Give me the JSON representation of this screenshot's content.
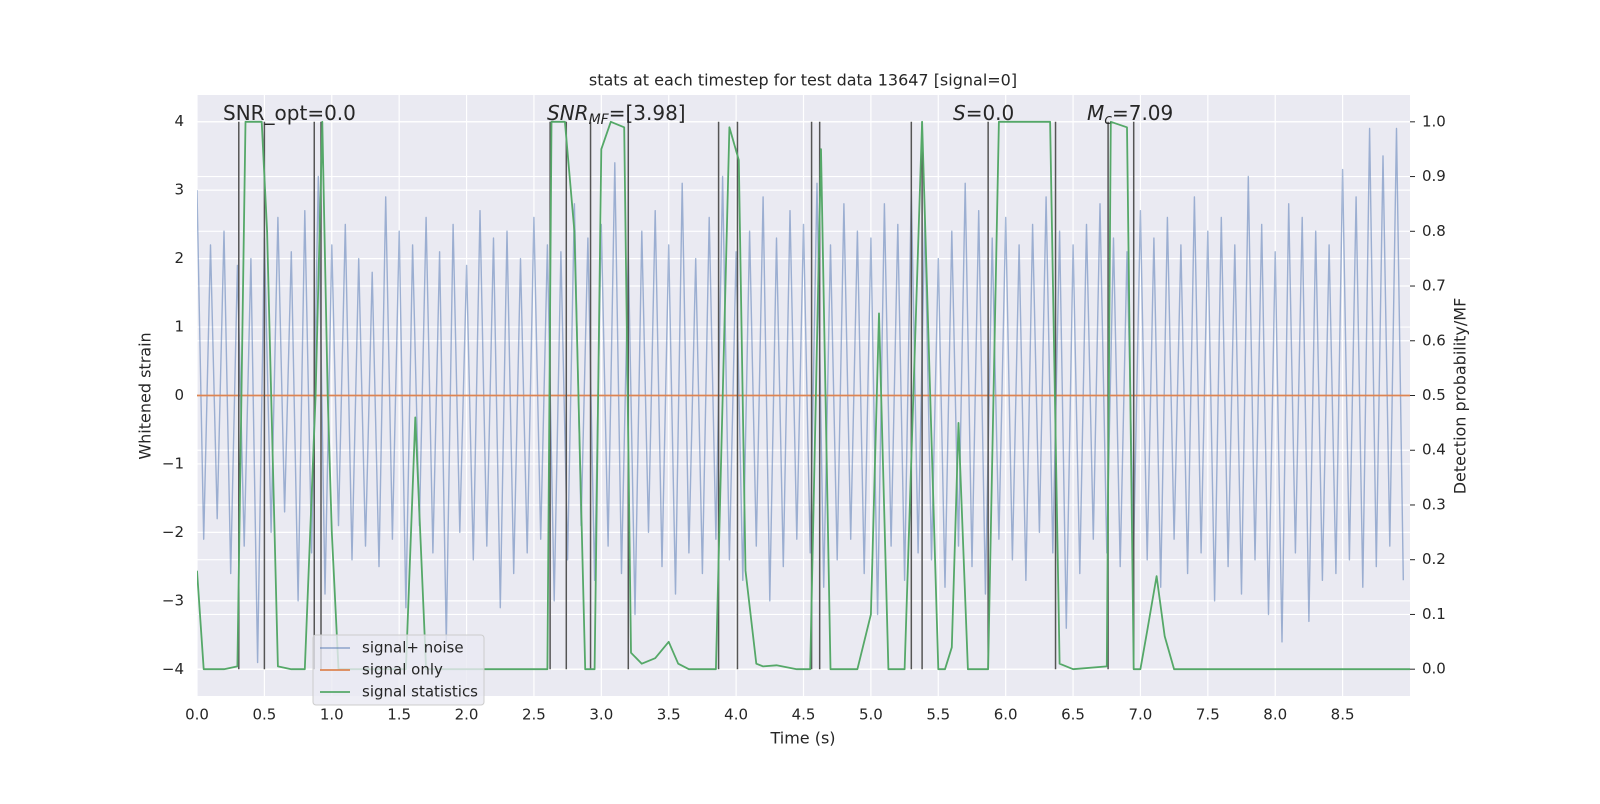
{
  "chart_data": {
    "type": "line",
    "title": "stats at each timestep for test data 13647 [signal=0]",
    "xlabel": "Time (s)",
    "ylabel": "Whitened strain",
    "y2label": "Detection probability/MF",
    "xlim": [
      0,
      9.0
    ],
    "ylim": [
      -4.39,
      4.39
    ],
    "y2lim": [
      -0.049,
      1.049
    ],
    "grid": true,
    "legend": "lower left",
    "xticks": [
      {
        "value": 0,
        "label": "0.0"
      },
      {
        "value": 0.5,
        "label": "0.5"
      },
      {
        "value": 1,
        "label": "1.0"
      },
      {
        "value": 1.5,
        "label": "1.5"
      },
      {
        "value": 2,
        "label": "2.0"
      },
      {
        "value": 2.5,
        "label": "2.5"
      },
      {
        "value": 3,
        "label": "3.0"
      },
      {
        "value": 3.5,
        "label": "3.5"
      },
      {
        "value": 4,
        "label": "4.0"
      },
      {
        "value": 4.5,
        "label": "4.5"
      },
      {
        "value": 5,
        "label": "5.0"
      },
      {
        "value": 5.5,
        "label": "5.5"
      },
      {
        "value": 6,
        "label": "6.0"
      },
      {
        "value": 6.5,
        "label": "6.5"
      },
      {
        "value": 7,
        "label": "7.0"
      },
      {
        "value": 7.5,
        "label": "7.5"
      },
      {
        "value": 8,
        "label": "8.0"
      },
      {
        "value": 8.5,
        "label": "8.5"
      }
    ],
    "yticks": [
      {
        "value": -4,
        "label": "−4"
      },
      {
        "value": -3,
        "label": "−3"
      },
      {
        "value": -2,
        "label": "−2"
      },
      {
        "value": -1,
        "label": "−1"
      },
      0,
      1,
      2,
      3,
      4
    ],
    "y2ticks": [
      {
        "value": 0,
        "label": "0.0"
      },
      {
        "value": 0.1,
        "label": "0.1"
      },
      {
        "value": 0.2,
        "label": "0.2"
      },
      {
        "value": 0.3,
        "label": "0.3"
      },
      {
        "value": 0.4,
        "label": "0.4"
      },
      {
        "value": 0.5,
        "label": "0.5"
      },
      {
        "value": 0.6,
        "label": "0.6"
      },
      {
        "value": 0.7,
        "label": "0.7"
      },
      {
        "value": 0.8,
        "label": "0.8"
      },
      {
        "value": 0.9,
        "label": "0.9"
      },
      {
        "value": 1,
        "label": "1.0"
      }
    ],
    "annotations": [
      {
        "text": "SNR_opt=0.0"
      },
      {
        "text": "SNR",
        "sub": "MF",
        "rest": "=[3.98]"
      },
      {
        "text": "S",
        "rest": "=0.0"
      },
      {
        "text": "M",
        "sub": "c",
        "rest": "=7.09"
      }
    ],
    "vlines": {
      "color": "#555555",
      "ymin": -4,
      "ymax": 4,
      "x": [
        0.31,
        0.5,
        0.87,
        0.92,
        2.62,
        2.74,
        2.92,
        3.2,
        3.87,
        4.01,
        4.56,
        4.62,
        5.3,
        5.38,
        5.87,
        6.37,
        6.76,
        6.95
      ]
    },
    "series": [
      {
        "name": "signal+ noise",
        "color": "#4c72b0",
        "alpha": 0.5,
        "x": [
          0,
          0.05,
          0.1,
          0.15,
          0.2,
          0.25,
          0.3,
          0.35,
          0.4,
          0.45,
          0.5,
          0.55,
          0.6,
          0.65,
          0.7,
          0.75,
          0.8,
          0.85,
          0.9,
          0.95,
          1,
          1.05,
          1.1,
          1.15,
          1.2,
          1.25,
          1.3,
          1.35,
          1.4,
          1.45,
          1.5,
          1.55,
          1.6,
          1.65,
          1.7,
          1.75,
          1.8,
          1.85,
          1.9,
          1.95,
          2,
          2.05,
          2.1,
          2.15,
          2.2,
          2.25,
          2.3,
          2.35,
          2.4,
          2.45,
          2.5,
          2.55,
          2.6,
          2.65,
          2.7,
          2.75,
          2.8,
          2.85,
          2.9,
          2.95,
          3,
          3.05,
          3.1,
          3.15,
          3.2,
          3.25,
          3.3,
          3.35,
          3.4,
          3.45,
          3.5,
          3.55,
          3.6,
          3.65,
          3.7,
          3.75,
          3.8,
          3.85,
          3.9,
          3.95,
          4,
          4.05,
          4.1,
          4.15,
          4.2,
          4.25,
          4.3,
          4.35,
          4.4,
          4.45,
          4.5,
          4.55,
          4.6,
          4.65,
          4.7,
          4.75,
          4.8,
          4.85,
          4.9,
          4.95,
          5,
          5.05,
          5.1,
          5.15,
          5.2,
          5.25,
          5.3,
          5.35,
          5.4,
          5.45,
          5.5,
          5.55,
          5.6,
          5.65,
          5.7,
          5.75,
          5.8,
          5.85,
          5.9,
          5.95,
          6,
          6.05,
          6.1,
          6.15,
          6.2,
          6.25,
          6.3,
          6.35,
          6.4,
          6.45,
          6.5,
          6.55,
          6.6,
          6.65,
          6.7,
          6.75,
          6.8,
          6.85,
          6.9,
          6.95,
          7,
          7.05,
          7.1,
          7.15,
          7.2,
          7.25,
          7.3,
          7.35,
          7.4,
          7.45,
          7.5,
          7.55,
          7.6,
          7.65,
          7.7,
          7.75,
          7.8,
          7.85,
          7.9,
          7.95,
          8,
          8.05,
          8.1,
          8.15,
          8.2,
          8.25,
          8.3,
          8.35,
          8.4,
          8.45,
          8.5,
          8.55,
          8.6,
          8.65,
          8.7,
          8.75,
          8.8,
          8.85,
          8.9,
          8.95
        ],
        "values": [
          3.0,
          -2.1,
          2.2,
          -1.8,
          2.4,
          -2.6,
          1.9,
          -2.2,
          2.0,
          -3.9,
          2.3,
          -2.0,
          2.6,
          -1.7,
          2.1,
          -3.0,
          2.7,
          -2.3,
          3.2,
          -2.9,
          2.2,
          -1.9,
          2.5,
          -2.4,
          2.0,
          -2.2,
          1.8,
          -2.5,
          2.9,
          -2.1,
          2.4,
          -3.1,
          2.2,
          -1.9,
          2.6,
          -2.3,
          2.1,
          -3.6,
          2.5,
          -2.0,
          1.9,
          -2.4,
          2.7,
          -2.2,
          2.3,
          -3.1,
          2.4,
          -2.6,
          2.0,
          -2.3,
          2.6,
          -2.1,
          2.2,
          -3.0,
          2.1,
          -2.4,
          2.8,
          -1.9,
          2.3,
          -2.7,
          2.5,
          -2.2,
          3.4,
          -2.6,
          2.1,
          -3.2,
          2.4,
          -2.0,
          2.7,
          -2.5,
          2.2,
          -2.9,
          3.1,
          -2.3,
          2.0,
          -2.6,
          2.6,
          -2.1,
          3.2,
          -2.4,
          2.1,
          -2.7,
          2.4,
          -2.2,
          2.9,
          -3.0,
          2.3,
          -2.5,
          2.7,
          -2.1,
          2.5,
          -2.3,
          3.1,
          -2.8,
          2.2,
          -2.4,
          2.8,
          -2.1,
          2.4,
          -2.6,
          2.3,
          -3.2,
          2.8,
          -2.2,
          2.5,
          -2.7,
          3.0,
          -2.3,
          2.6,
          -2.4,
          2.0,
          -2.8,
          2.4,
          -2.2,
          3.1,
          -2.5,
          2.7,
          -2.9,
          2.3,
          -2.1,
          2.6,
          -2.4,
          2.2,
          -2.7,
          2.5,
          -2.0,
          2.9,
          -2.3,
          2.4,
          -3.4,
          2.2,
          -2.6,
          2.5,
          -2.1,
          2.8,
          -2.3,
          2.3,
          -2.5,
          2.1,
          -2.2,
          2.7,
          -2.4,
          2.3,
          -2.8,
          2.6,
          -2.1,
          2.2,
          -2.6,
          2.9,
          -2.3,
          2.4,
          -3.0,
          2.6,
          -2.5,
          2.2,
          -2.9,
          3.2,
          -2.4,
          2.5,
          -3.2,
          2.1,
          -3.6,
          2.8,
          -2.3,
          2.6,
          -3.3,
          2.4,
          -2.7,
          2.2,
          -2.6,
          3.3,
          -2.4,
          2.9,
          -2.8,
          3.9,
          -2.5,
          3.5,
          -2.2,
          3.9,
          -2.7
        ]
      },
      {
        "name": "signal only",
        "color": "#dd8452",
        "alpha": 1,
        "x": [
          0,
          9.0
        ],
        "values": [
          0,
          0
        ]
      },
      {
        "name": "signal statistics",
        "color": "#55a868",
        "alpha": 1,
        "axis": "y2",
        "x": [
          0,
          0.05,
          0.2,
          0.3,
          0.36,
          0.48,
          0.52,
          0.6,
          0.7,
          0.8,
          0.88,
          0.93,
          0.97,
          1.0,
          1.05,
          1.55,
          1.62,
          1.7,
          2.6,
          2.63,
          2.73,
          2.8,
          2.88,
          2.95,
          3.0,
          3.07,
          3.17,
          3.22,
          3.3,
          3.4,
          3.5,
          3.57,
          3.65,
          3.85,
          3.95,
          4.02,
          4.07,
          4.15,
          4.2,
          4.3,
          4.45,
          4.55,
          4.63,
          4.7,
          4.9,
          5.0,
          5.06,
          5.13,
          5.25,
          5.38,
          5.5,
          5.55,
          5.6,
          5.65,
          5.72,
          5.87,
          5.95,
          6.1,
          6.33,
          6.4,
          6.5,
          6.75,
          6.78,
          6.9,
          6.95,
          7.0,
          7.05,
          7.12,
          7.18,
          7.25,
          9.0
        ],
        "values": [
          0.18,
          0.0,
          0.0,
          0.005,
          1.0,
          1.0,
          0.8,
          0.005,
          0.0,
          0.0,
          0.5,
          1.0,
          0.5,
          0.25,
          0.0,
          0.0,
          0.46,
          0.0,
          0.0,
          1.0,
          1.0,
          0.8,
          0.0,
          0.0,
          0.95,
          1.0,
          0.99,
          0.03,
          0.01,
          0.02,
          0.05,
          0.01,
          0.0,
          0.0,
          0.99,
          0.93,
          0.18,
          0.01,
          0.005,
          0.007,
          0.0,
          0.0,
          0.95,
          0.0,
          0.0,
          0.1,
          0.65,
          0.0,
          0.0,
          1.0,
          0.0,
          0.0,
          0.04,
          0.45,
          0.0,
          0.0,
          1.0,
          1.0,
          1.0,
          0.01,
          0.0,
          0.005,
          1.0,
          0.99,
          0.0,
          0.0,
          0.07,
          0.17,
          0.06,
          0.0,
          0.0
        ]
      }
    ]
  }
}
